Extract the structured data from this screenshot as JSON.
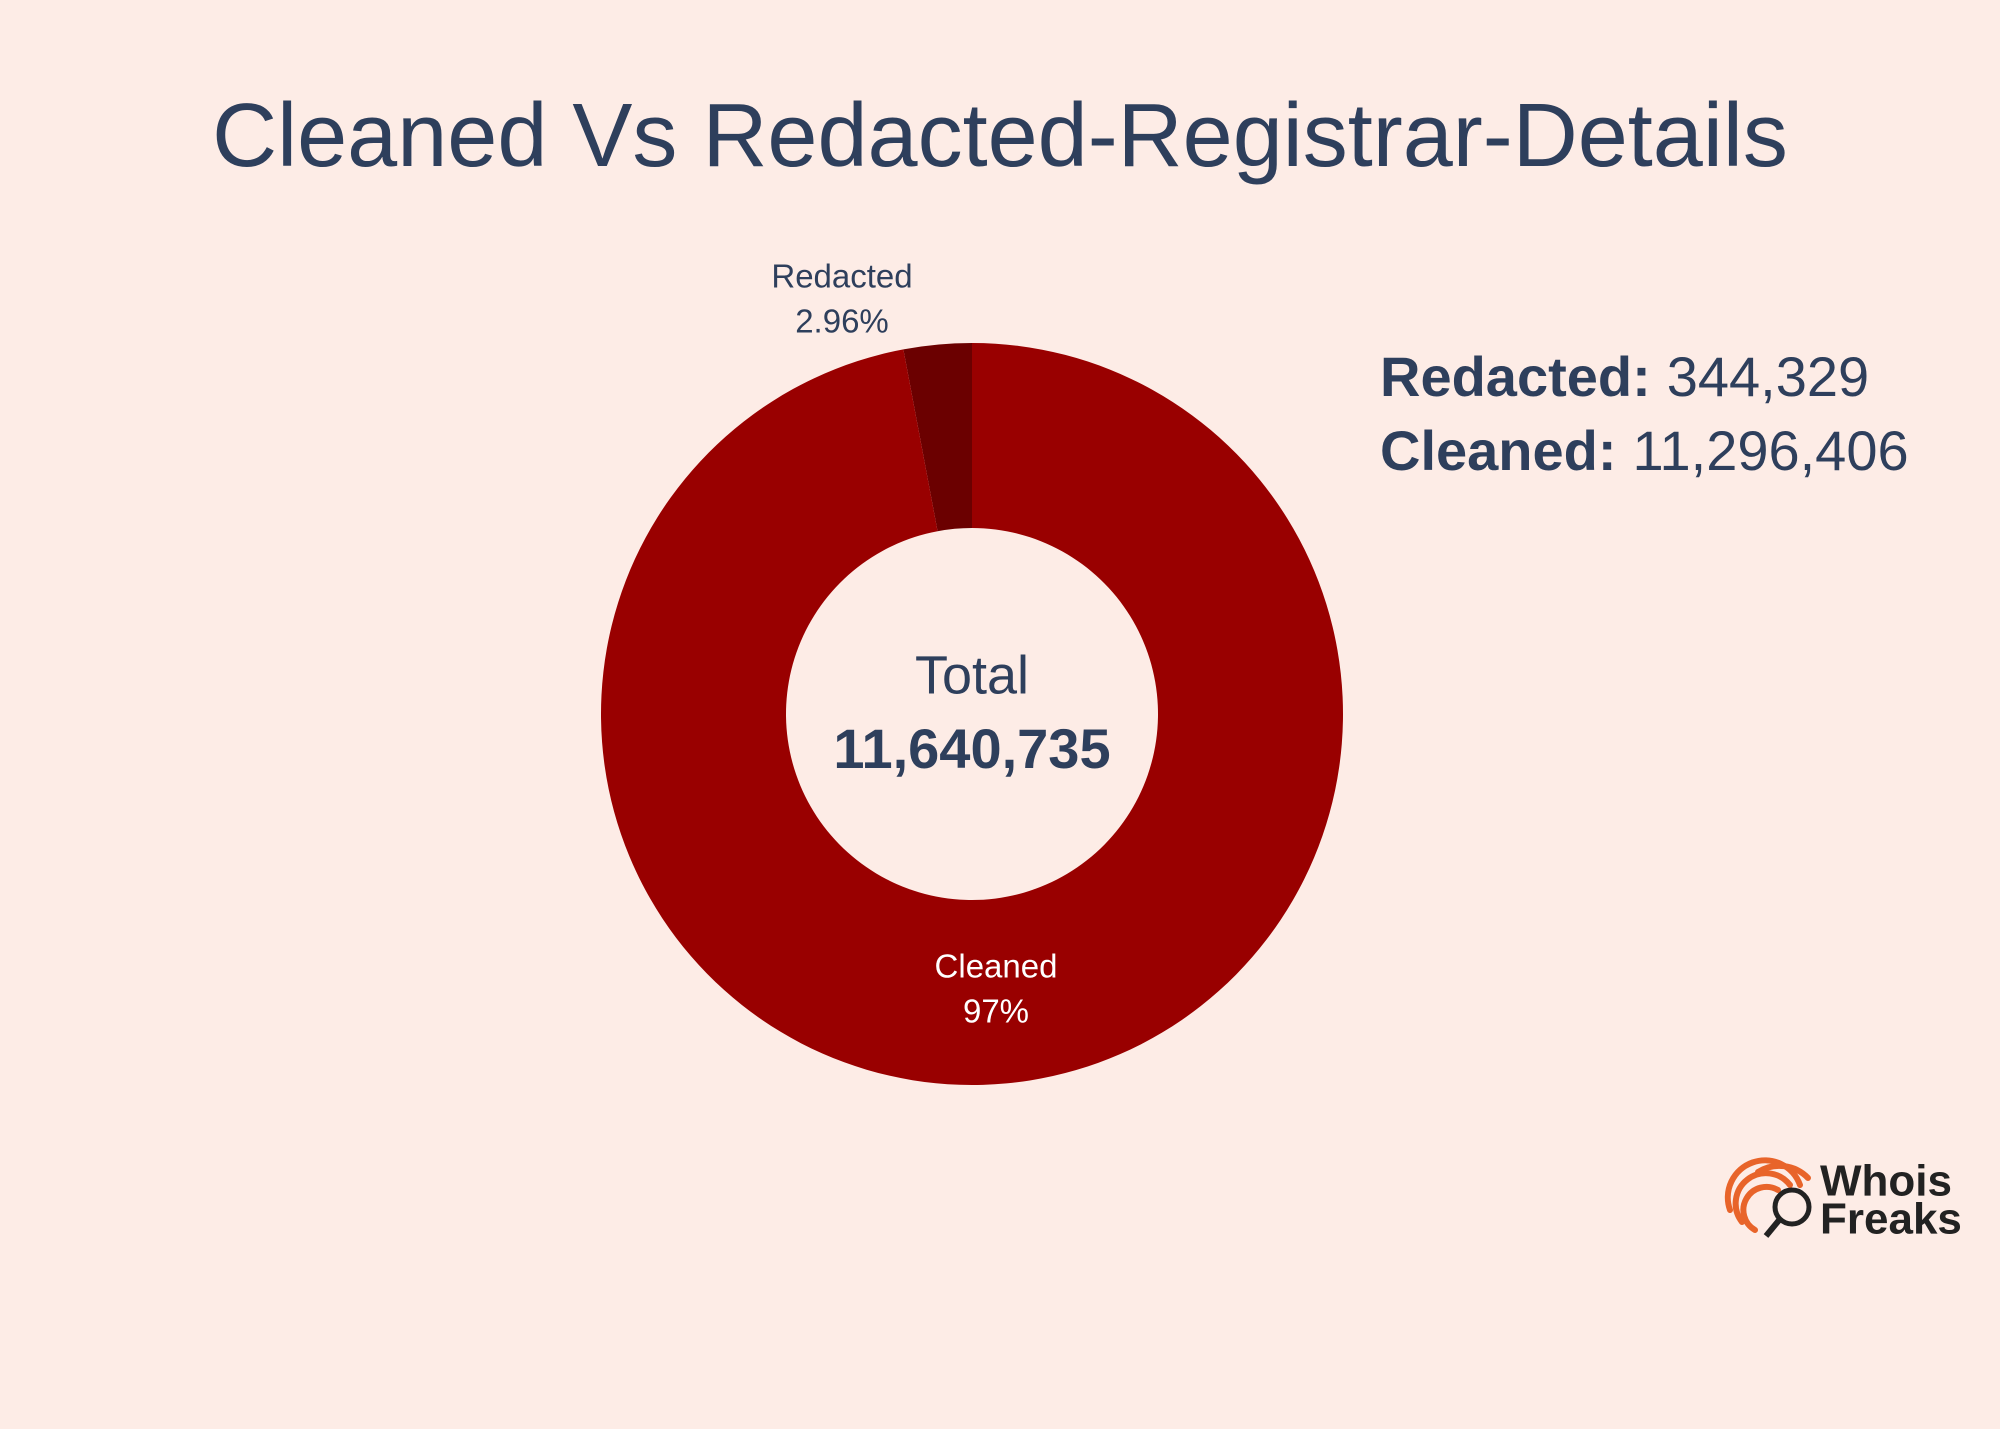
{
  "chart_data": {
    "type": "donut",
    "title": "Cleaned Vs Redacted-Registrar-Details",
    "categories": [
      "Redacted",
      "Cleaned"
    ],
    "values": [
      2.96,
      97
    ],
    "value_labels": [
      "2.96%",
      "97%"
    ],
    "colors": [
      "#6b0000",
      "#990000"
    ],
    "center_label": "Total",
    "center_value": "11,640,735",
    "stats": [
      {
        "name": "Redacted:",
        "value": "344,329"
      },
      {
        "name": "Cleaned:",
        "value": "11,296,406"
      }
    ]
  },
  "logo": [
    "Whois",
    "Freaks"
  ]
}
